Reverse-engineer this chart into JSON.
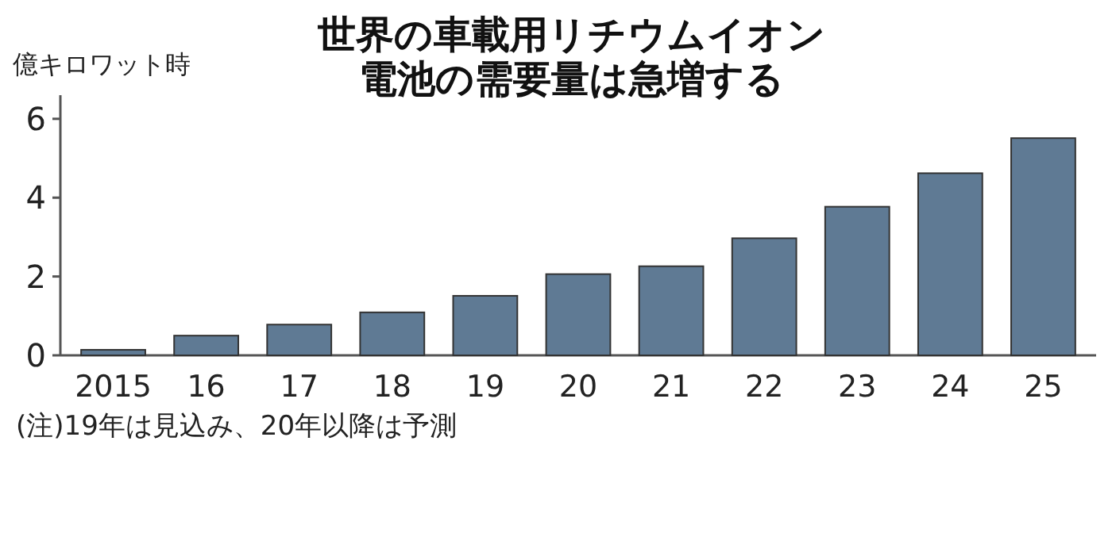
{
  "chart_data": {
    "type": "bar",
    "title": "世界の車載用リチウムイオン電池の需要量は急増する",
    "ylabel": "億キロワット時",
    "categories": [
      "2015",
      "16",
      "17",
      "18",
      "19",
      "20",
      "21",
      "22",
      "23",
      "24",
      "25"
    ],
    "values": [
      0.14,
      0.5,
      0.78,
      1.09,
      1.51,
      2.06,
      2.26,
      2.97,
      3.77,
      4.62,
      5.51
    ],
    "color": "#5f7a94",
    "ylim": [
      0,
      6.6
    ],
    "yticks": [
      0,
      2,
      4,
      6
    ],
    "annotations": [
      "(注)19年は見込み、20年以降は予測"
    ]
  }
}
